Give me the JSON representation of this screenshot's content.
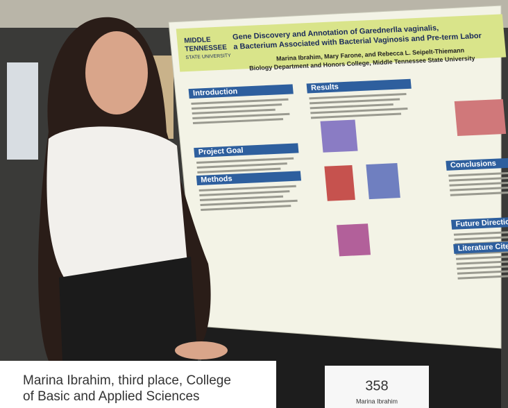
{
  "caption": [
    "Marina Ibrahim, third place, College",
    "of Basic and Applied Sciences"
  ],
  "placard": {
    "number": "358",
    "name": "Marina Ibrahim"
  },
  "poster": {
    "logo": [
      "MIDDLE",
      "TENNESSEE",
      "STATE UNIVERSITY"
    ],
    "title": [
      "Gene Discovery and Annotation of Garednerlla vaginalis,",
      "a Bacterium Associated with Bacterial Vaginosis and Pre-term Labor"
    ],
    "authors": "Marina Ibrahim, Mary Farone, and Rebecca L. Seipelt-Thiemann",
    "affiliation": "Biology Department and Honors College, Middle Tennessee State University",
    "sections": [
      "Introduction",
      "Project Goal",
      "Methods",
      "Results",
      "Conclusions",
      "Future Directions",
      "Literature Cited"
    ]
  }
}
